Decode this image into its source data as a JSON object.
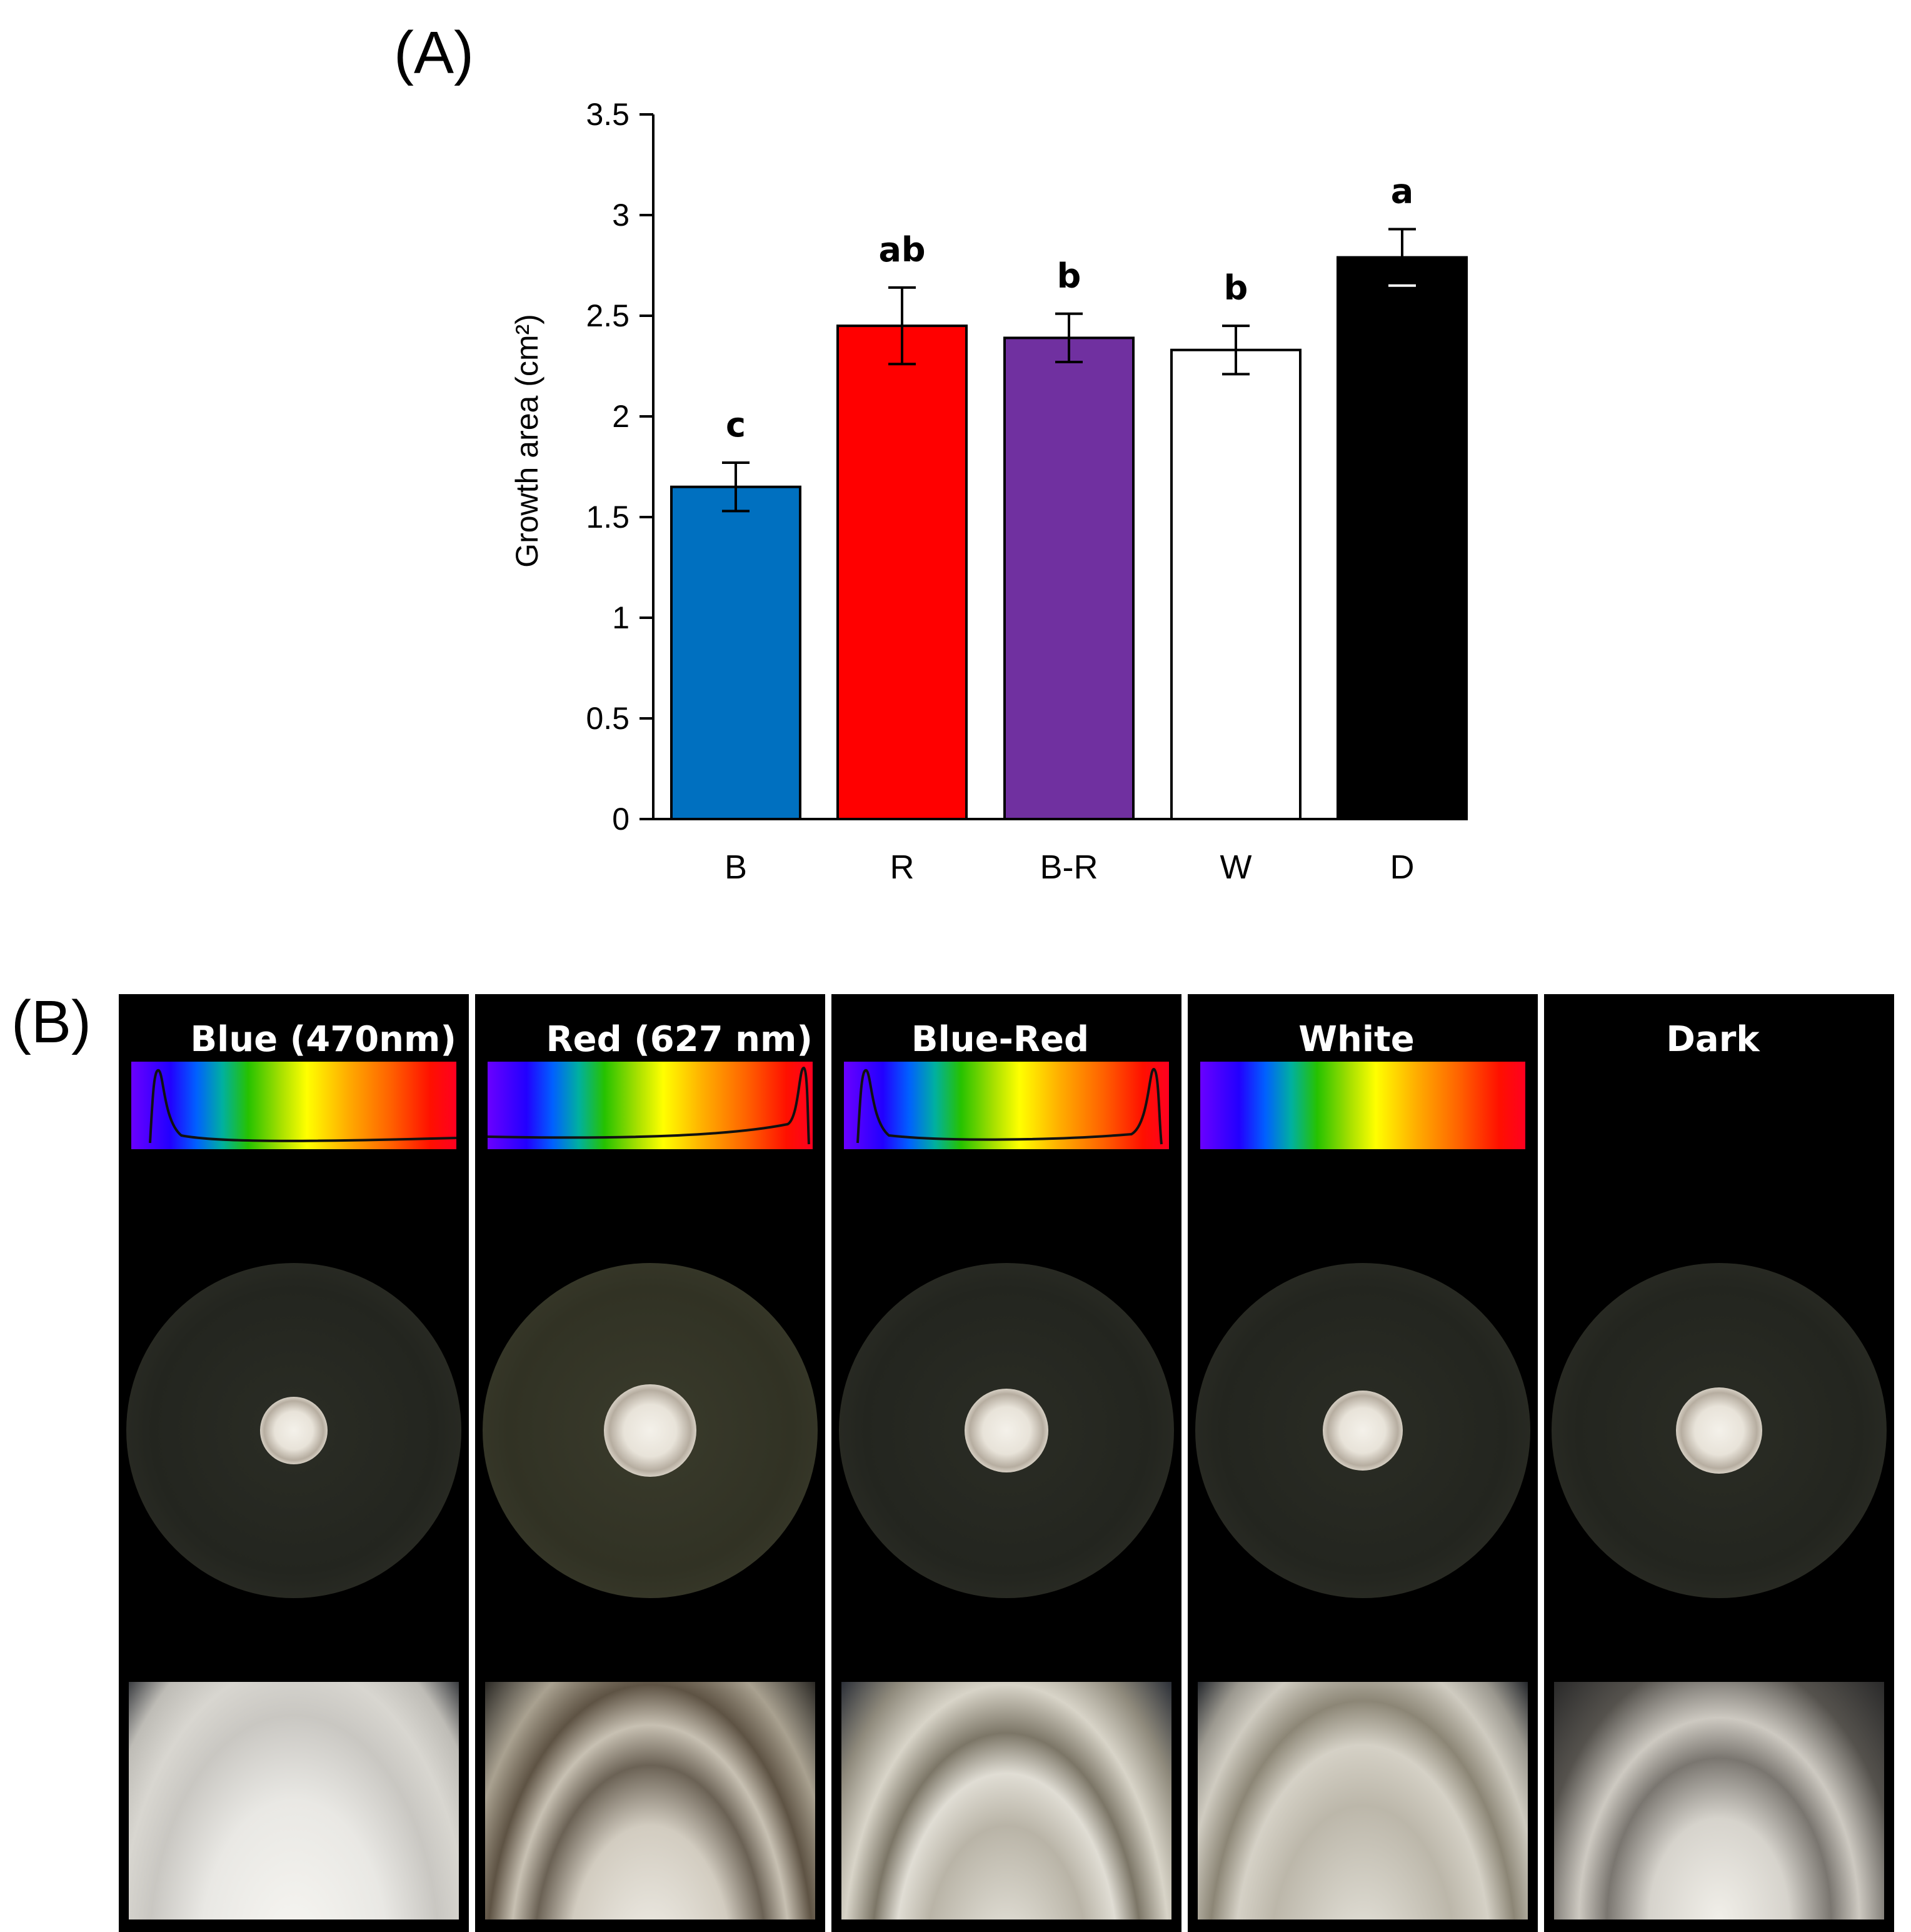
{
  "panel_a_label": "(A)",
  "panel_b_label": "(B)",
  "chart_data": {
    "type": "bar",
    "categories": [
      "B",
      "R",
      "B-R",
      "W",
      "D"
    ],
    "values": [
      1.65,
      2.45,
      2.39,
      2.33,
      2.79
    ],
    "errors": [
      0.12,
      0.19,
      0.12,
      0.12,
      0.14
    ],
    "significance_letters": [
      "c",
      "ab",
      "b",
      "b",
      "a"
    ],
    "bar_colors": [
      "#0070c0",
      "#ff0000",
      "#7030a0",
      "#ffffff",
      "#000000"
    ],
    "title": "",
    "xlabel": "",
    "ylabel": "Growth area (cm²)",
    "ylim": [
      0,
      3.5
    ],
    "yticks": [
      "0",
      "0.5",
      "1",
      "1.5",
      "2",
      "2.5",
      "3",
      "3.5"
    ],
    "grid": false,
    "legend": "none"
  },
  "panel_b": {
    "treatments": [
      {
        "title": "Blue (470nm)",
        "spectrum": "blue-peak"
      },
      {
        "title": "Red (627 nm)",
        "spectrum": "red-peak"
      },
      {
        "title": "Blue-Red",
        "spectrum": "blue-red-peaks"
      },
      {
        "title": "White",
        "spectrum": "flat"
      },
      {
        "title": "Dark",
        "spectrum": "none"
      }
    ]
  }
}
